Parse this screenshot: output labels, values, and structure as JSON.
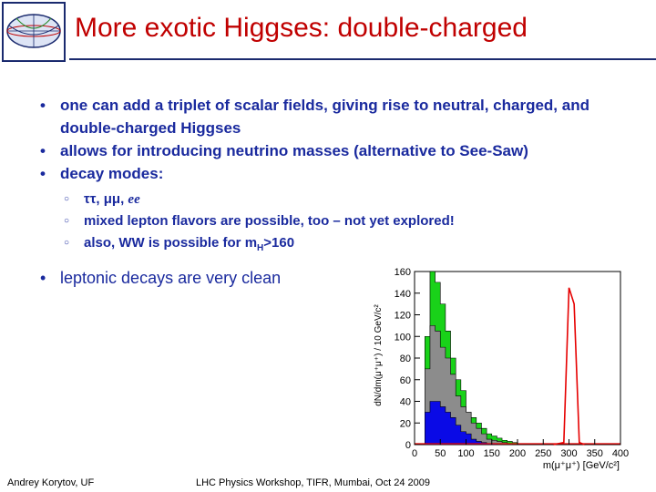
{
  "slide": {
    "title": "More exotic Higgses: double-charged",
    "bullets": [
      "one can add a triplet of scalar fields, giving rise to neutral, charged, and double-charged Higgses",
      "allows for introducing neutrino masses (alternative to See-Saw)",
      "decay modes:"
    ],
    "decay_modes": {
      "mode_1_greek": "ττ, μμ,",
      "mode_1_ital": "ee",
      "mode_2": "mixed lepton flavors are possible, too – not yet explored!",
      "mode_3_pre": "also, WW is possible for m",
      "mode_3_sub": "H",
      "mode_3_post": ">160"
    },
    "last_bullet": "leptonic decays are very clean"
  },
  "logo": {
    "name": "globe-logo-icon"
  },
  "footer": {
    "author": "Andrey Korytov, UF",
    "event": "LHC Physics Workshop, TIFR, Mumbai, Oct 24 2009"
  },
  "chart_data": {
    "type": "area",
    "ylabel": "dN/dm(μ⁺μ⁺) / 10 GeV/c²",
    "xlabel": "m(μ⁺μ⁺) [GeV/c²]",
    "xlim": [
      0,
      400
    ],
    "ylim": [
      0,
      160
    ],
    "xticks": [
      0,
      50,
      100,
      150,
      200,
      250,
      300,
      350,
      400
    ],
    "yticks": [
      0,
      20,
      40,
      60,
      80,
      100,
      120,
      140,
      160
    ],
    "colors": {
      "green": "#19d219",
      "gray": "#8c8c8c",
      "blue": "#0a0ae6",
      "red": "#e60000"
    },
    "bin_edges": [
      20,
      30,
      40,
      50,
      60,
      70,
      80,
      90,
      100,
      110,
      120,
      130,
      140,
      150,
      160,
      170,
      180,
      190,
      200
    ],
    "series": [
      {
        "fill": "green",
        "values": [
          100,
          160,
          150,
          130,
          105,
          80,
          60,
          50,
          30,
          25,
          20,
          15,
          10,
          8,
          6,
          4,
          3,
          2
        ]
      },
      {
        "fill": "gray",
        "values": [
          70,
          110,
          105,
          90,
          80,
          65,
          45,
          35,
          30,
          20,
          15,
          10,
          5,
          4,
          3,
          2,
          1,
          0
        ]
      },
      {
        "fill": "blue",
        "values": [
          30,
          40,
          40,
          35,
          30,
          25,
          18,
          12,
          10,
          5,
          3,
          2,
          1,
          1,
          0,
          0,
          0,
          0
        ]
      }
    ],
    "red_peak": {
      "x": [
        270,
        290,
        300,
        310,
        320,
        330
      ],
      "y": [
        0,
        2,
        145,
        130,
        2,
        0
      ]
    }
  }
}
